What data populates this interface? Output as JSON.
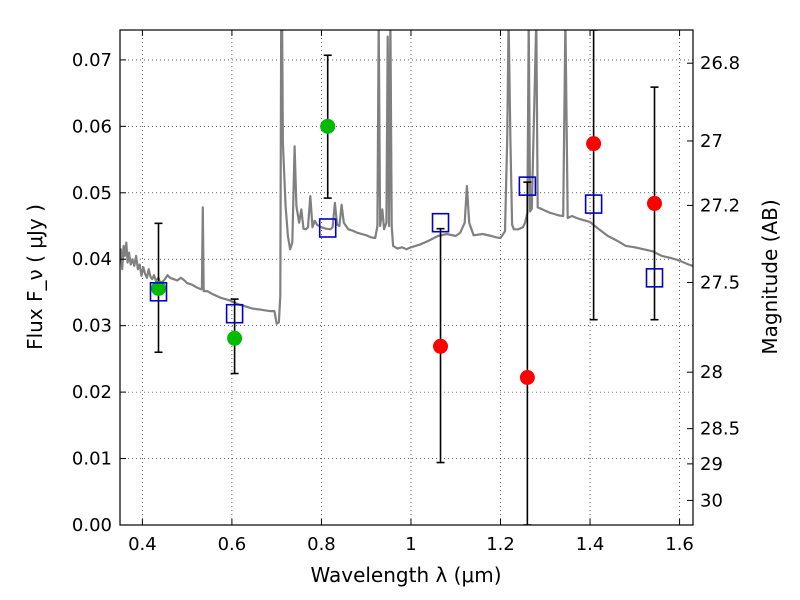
{
  "chart_data": {
    "type": "scatter",
    "title": "",
    "xlabel": "Wavelength  λ (μm)",
    "ylabel": "Flux  F_ν  ( μJy )",
    "y2label": "Magnitude (AB)",
    "xlim": [
      0.35,
      1.63
    ],
    "ylim": [
      0.0,
      0.0745
    ],
    "grid": true,
    "x_ticks": [
      0.4,
      0.6,
      0.8,
      1.0,
      1.2,
      1.4,
      1.6
    ],
    "x_tick_labels": [
      "0.4",
      "0.6",
      "0.8",
      "1",
      "1.2",
      "1.4",
      "1.6"
    ],
    "y_ticks": [
      0.0,
      0.01,
      0.02,
      0.03,
      0.04,
      0.05,
      0.06,
      0.07
    ],
    "y_tick_labels": [
      "0.00",
      "0.01",
      "0.02",
      "0.03",
      "0.04",
      "0.05",
      "0.06",
      "0.07"
    ],
    "mag_ticks": [
      {
        "label": "26.8",
        "flux": 0.0695
      },
      {
        "label": "27",
        "flux": 0.0578
      },
      {
        "label": "27.2",
        "flux": 0.0481
      },
      {
        "label": "27.5",
        "flux": 0.0365
      },
      {
        "label": "28",
        "flux": 0.023
      },
      {
        "label": "28.5",
        "flux": 0.0145
      },
      {
        "label": "29",
        "flux": 0.0092
      },
      {
        "label": "30",
        "flux": 0.0037
      }
    ],
    "colors": {
      "spectrum": "#808080",
      "detected": "#00bb00",
      "upper": "#ff0000",
      "model": "#0000cc",
      "errorbar": "#000000"
    },
    "spectrum": {
      "name": "",
      "points": [
        [
          0.35,
          0.0395
        ],
        [
          0.352,
          0.0415
        ],
        [
          0.355,
          0.0385
        ],
        [
          0.358,
          0.042
        ],
        [
          0.361,
          0.0405
        ],
        [
          0.364,
          0.0425
        ],
        [
          0.367,
          0.0395
        ],
        [
          0.37,
          0.041
        ],
        [
          0.374,
          0.0392
        ],
        [
          0.378,
          0.04
        ],
        [
          0.382,
          0.039
        ],
        [
          0.386,
          0.0405
        ],
        [
          0.39,
          0.0385
        ],
        [
          0.394,
          0.0392
        ],
        [
          0.398,
          0.0375
        ],
        [
          0.402,
          0.0388
        ],
        [
          0.406,
          0.0378
        ],
        [
          0.41,
          0.0372
        ],
        [
          0.414,
          0.0385
        ],
        [
          0.418,
          0.0374
        ],
        [
          0.422,
          0.037
        ],
        [
          0.426,
          0.0376
        ],
        [
          0.43,
          0.0368
        ],
        [
          0.436,
          0.0372
        ],
        [
          0.44,
          0.0364
        ],
        [
          0.448,
          0.0368
        ],
        [
          0.456,
          0.0376
        ],
        [
          0.462,
          0.0372
        ],
        [
          0.47,
          0.037
        ],
        [
          0.478,
          0.0368
        ],
        [
          0.486,
          0.0372
        ],
        [
          0.494,
          0.0368
        ],
        [
          0.5,
          0.0364
        ],
        [
          0.51,
          0.0362
        ],
        [
          0.52,
          0.0358
        ],
        [
          0.53,
          0.0355
        ],
        [
          0.533,
          0.0355
        ],
        [
          0.535,
          0.0478
        ],
        [
          0.537,
          0.0352
        ],
        [
          0.545,
          0.0352
        ],
        [
          0.555,
          0.0348
        ],
        [
          0.565,
          0.0345
        ],
        [
          0.575,
          0.0342
        ],
        [
          0.585,
          0.034
        ],
        [
          0.595,
          0.0338
        ],
        [
          0.605,
          0.0335
        ],
        [
          0.615,
          0.0332
        ],
        [
          0.625,
          0.033
        ],
        [
          0.635,
          0.0328
        ],
        [
          0.645,
          0.0326
        ],
        [
          0.655,
          0.0325
        ],
        [
          0.665,
          0.0324
        ],
        [
          0.675,
          0.0323
        ],
        [
          0.685,
          0.0322
        ],
        [
          0.695,
          0.0322
        ],
        [
          0.7,
          0.0303
        ],
        [
          0.705,
          0.0305
        ],
        [
          0.708,
          0.0345
        ],
        [
          0.71,
          0.076
        ],
        [
          0.712,
          0.076
        ],
        [
          0.714,
          0.0575
        ],
        [
          0.72,
          0.048
        ],
        [
          0.725,
          0.0435
        ],
        [
          0.73,
          0.0415
        ],
        [
          0.735,
          0.0425
        ],
        [
          0.74,
          0.057
        ],
        [
          0.744,
          0.048
        ],
        [
          0.75,
          0.0455
        ],
        [
          0.755,
          0.0475
        ],
        [
          0.76,
          0.0446
        ],
        [
          0.765,
          0.0445
        ],
        [
          0.77,
          0.0448
        ],
        [
          0.775,
          0.0495
        ],
        [
          0.78,
          0.0448
        ],
        [
          0.785,
          0.0458
        ],
        [
          0.79,
          0.0452
        ],
        [
          0.8,
          0.0448
        ],
        [
          0.81,
          0.0446
        ],
        [
          0.82,
          0.0445
        ],
        [
          0.825,
          0.0448
        ],
        [
          0.83,
          0.0485
        ],
        [
          0.835,
          0.0452
        ],
        [
          0.84,
          0.045
        ],
        [
          0.845,
          0.0482
        ],
        [
          0.85,
          0.0455
        ],
        [
          0.86,
          0.0445
        ],
        [
          0.87,
          0.0443
        ],
        [
          0.88,
          0.044
        ],
        [
          0.89,
          0.0438
        ],
        [
          0.9,
          0.0436
        ],
        [
          0.91,
          0.0433
        ],
        [
          0.92,
          0.0432
        ],
        [
          0.925,
          0.045
        ],
        [
          0.928,
          0.076
        ],
        [
          0.931,
          0.045
        ],
        [
          0.936,
          0.0475
        ],
        [
          0.94,
          0.0445
        ],
        [
          0.945,
          0.0455
        ],
        [
          0.948,
          0.0735
        ],
        [
          0.951,
          0.045
        ],
        [
          0.954,
          0.076
        ],
        [
          0.957,
          0.045
        ],
        [
          0.96,
          0.042
        ],
        [
          0.965,
          0.0418
        ],
        [
          0.97,
          0.0416
        ],
        [
          0.98,
          0.0418
        ],
        [
          0.99,
          0.0415
        ],
        [
          1.0,
          0.0418
        ],
        [
          1.02,
          0.0422
        ],
        [
          1.04,
          0.0428
        ],
        [
          1.06,
          0.0435
        ],
        [
          1.08,
          0.0438
        ],
        [
          1.1,
          0.0435
        ],
        [
          1.11,
          0.044
        ],
        [
          1.12,
          0.0455
        ],
        [
          1.125,
          0.051
        ],
        [
          1.13,
          0.0455
        ],
        [
          1.14,
          0.0436
        ],
        [
          1.16,
          0.0438
        ],
        [
          1.18,
          0.0435
        ],
        [
          1.19,
          0.0433
        ],
        [
          1.2,
          0.0432
        ],
        [
          1.21,
          0.0442
        ],
        [
          1.215,
          0.058
        ],
        [
          1.218,
          0.076
        ],
        [
          1.222,
          0.058
        ],
        [
          1.226,
          0.0452
        ],
        [
          1.23,
          0.0445
        ],
        [
          1.24,
          0.0445
        ],
        [
          1.25,
          0.0448
        ],
        [
          1.255,
          0.0455
        ],
        [
          1.26,
          0.047
        ],
        [
          1.263,
          0.076
        ],
        [
          1.266,
          0.0472
        ],
        [
          1.27,
          0.0476
        ],
        [
          1.28,
          0.076
        ],
        [
          1.283,
          0.0478
        ],
        [
          1.29,
          0.0476
        ],
        [
          1.3,
          0.0473
        ],
        [
          1.31,
          0.047
        ],
        [
          1.32,
          0.0468
        ],
        [
          1.33,
          0.0466
        ],
        [
          1.34,
          0.0465
        ],
        [
          1.345,
          0.076
        ],
        [
          1.35,
          0.0462
        ],
        [
          1.36,
          0.0465
        ],
        [
          1.37,
          0.0462
        ],
        [
          1.38,
          0.046
        ],
        [
          1.39,
          0.0458
        ],
        [
          1.4,
          0.0456
        ],
        [
          1.42,
          0.0445
        ],
        [
          1.44,
          0.0435
        ],
        [
          1.46,
          0.0428
        ],
        [
          1.48,
          0.042
        ],
        [
          1.5,
          0.0418
        ],
        [
          1.52,
          0.0415
        ],
        [
          1.54,
          0.0412
        ],
        [
          1.56,
          0.0405
        ],
        [
          1.58,
          0.0402
        ],
        [
          1.6,
          0.0398
        ],
        [
          1.62,
          0.0392
        ],
        [
          1.63,
          0.039
        ]
      ]
    },
    "series": [
      {
        "kind": "detected",
        "points": [
          {
            "x": 0.436,
            "y": 0.0356
          },
          {
            "x": 0.606,
            "y": 0.0281
          },
          {
            "x": 0.814,
            "y": 0.06
          }
        ]
      },
      {
        "kind": "upper",
        "points": [
          {
            "x": 1.066,
            "y": 0.0269
          },
          {
            "x": 1.26,
            "y": 0.0222
          },
          {
            "x": 1.408,
            "y": 0.0574
          },
          {
            "x": 1.544,
            "y": 0.0484
          }
        ]
      },
      {
        "kind": "model",
        "points": [
          {
            "x": 0.436,
            "y": 0.0351
          },
          {
            "x": 0.606,
            "y": 0.0318
          },
          {
            "x": 0.814,
            "y": 0.0447
          },
          {
            "x": 1.066,
            "y": 0.0455
          },
          {
            "x": 1.26,
            "y": 0.051
          },
          {
            "x": 1.408,
            "y": 0.0483
          },
          {
            "x": 1.544,
            "y": 0.0372
          }
        ]
      }
    ],
    "errorbars": [
      {
        "x": 0.436,
        "low": 0.026,
        "high": 0.0454
      },
      {
        "x": 0.606,
        "low": 0.0228,
        "high": 0.034
      },
      {
        "x": 0.814,
        "low": 0.0492,
        "high": 0.0707
      },
      {
        "x": 1.066,
        "low": 0.0094,
        "high": 0.0446
      },
      {
        "x": 1.26,
        "low": 0.0,
        "high": 0.0516
      },
      {
        "x": 1.408,
        "low": 0.0309,
        "high": 0.0745
      },
      {
        "x": 1.544,
        "low": 0.0309,
        "high": 0.0659
      }
    ]
  }
}
